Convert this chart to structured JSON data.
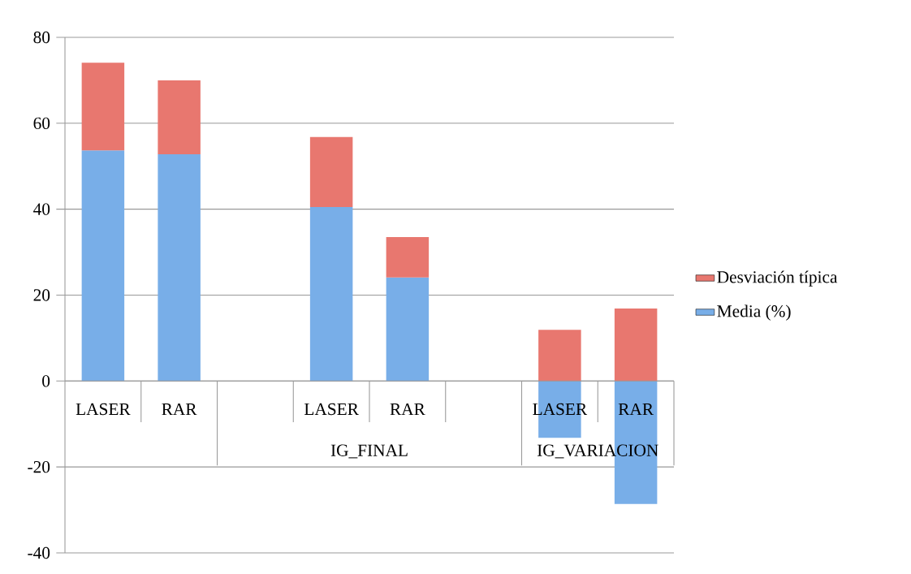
{
  "chart_data": {
    "type": "bar",
    "stacked": true,
    "categories": [
      "LASER",
      "RAR",
      null,
      "LASER",
      "RAR",
      null,
      "LASER",
      "RAR"
    ],
    "series": [
      {
        "name": "Media (%)",
        "color": "#78aee8",
        "values": [
          53.7,
          52.8,
          null,
          40.5,
          24.1,
          null,
          -13.2,
          -28.6
        ]
      },
      {
        "name": "Desviación típica",
        "color": "#e8776f",
        "values": [
          20.4,
          17.2,
          null,
          16.3,
          9.4,
          null,
          11.9,
          16.9
        ]
      }
    ],
    "annotations": [
      "IG_FINAL",
      "IG_VARIACION"
    ],
    "ylim": [
      -40,
      80
    ],
    "yticks": [
      -40,
      -20,
      0,
      20,
      40,
      60,
      80
    ],
    "grid": "y",
    "legend": "right"
  }
}
